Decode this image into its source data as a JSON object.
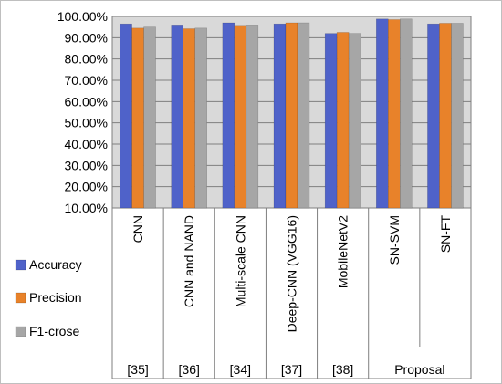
{
  "chart_data": {
    "type": "bar",
    "categories": [
      "CNN",
      "CNN and NAND",
      "Multi-scale CNN",
      "Deep-CNN (VGG16)",
      "MobileNetV2",
      "SN-SVM",
      "SN-FT"
    ],
    "group_labels": [
      "[35]",
      "[36]",
      "[34]",
      "[37]",
      "[38]",
      "Proposal"
    ],
    "series": [
      {
        "name": "Accuracy",
        "color": "#4F62C9",
        "values": [
          96.5,
          96.0,
          97.0,
          96.5,
          92.0,
          98.8,
          96.5
        ]
      },
      {
        "name": "Precision",
        "color": "#E8822A",
        "values": [
          94.5,
          94.2,
          95.8,
          97.0,
          92.5,
          98.5,
          96.8
        ]
      },
      {
        "name": "F1-crose",
        "color": "#A6A6A6",
        "values": [
          95.0,
          94.5,
          96.0,
          97.0,
          92.0,
          98.8,
          96.8
        ]
      }
    ],
    "ylim": [
      10,
      100
    ],
    "yticks": [
      "10.00%",
      "20.00%",
      "30.00%",
      "40.00%",
      "50.00%",
      "60.00%",
      "70.00%",
      "80.00%",
      "90.00%",
      "100.00%"
    ],
    "grid": true,
    "legend_position": "bottom-left"
  }
}
